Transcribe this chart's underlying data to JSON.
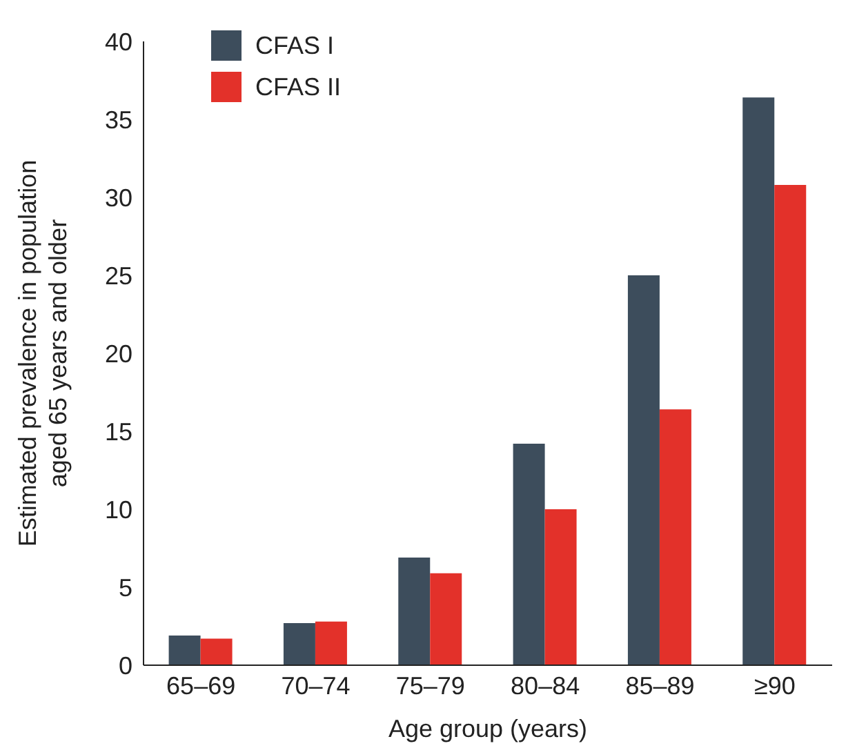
{
  "chart_data": {
    "type": "bar",
    "xlabel": "Age group (years)",
    "ylabel": "Estimated prevalence in population aged 65 years and older",
    "categories": [
      "65–69",
      "70–74",
      "75–79",
      "80–84",
      "85–89",
      "≥90"
    ],
    "series": [
      {
        "name": "CFAS I",
        "color": "#3d4d5c",
        "values": [
          1.9,
          2.7,
          6.9,
          14.2,
          25.0,
          36.4
        ]
      },
      {
        "name": "CFAS II",
        "color": "#e3312a",
        "values": [
          1.7,
          2.8,
          5.9,
          10.0,
          16.4,
          30.8
        ]
      }
    ],
    "ylim": [
      0,
      40
    ],
    "yticks": [
      0,
      5,
      10,
      15,
      20,
      25,
      30,
      35,
      40
    ],
    "grid": false,
    "legend": "top left"
  }
}
